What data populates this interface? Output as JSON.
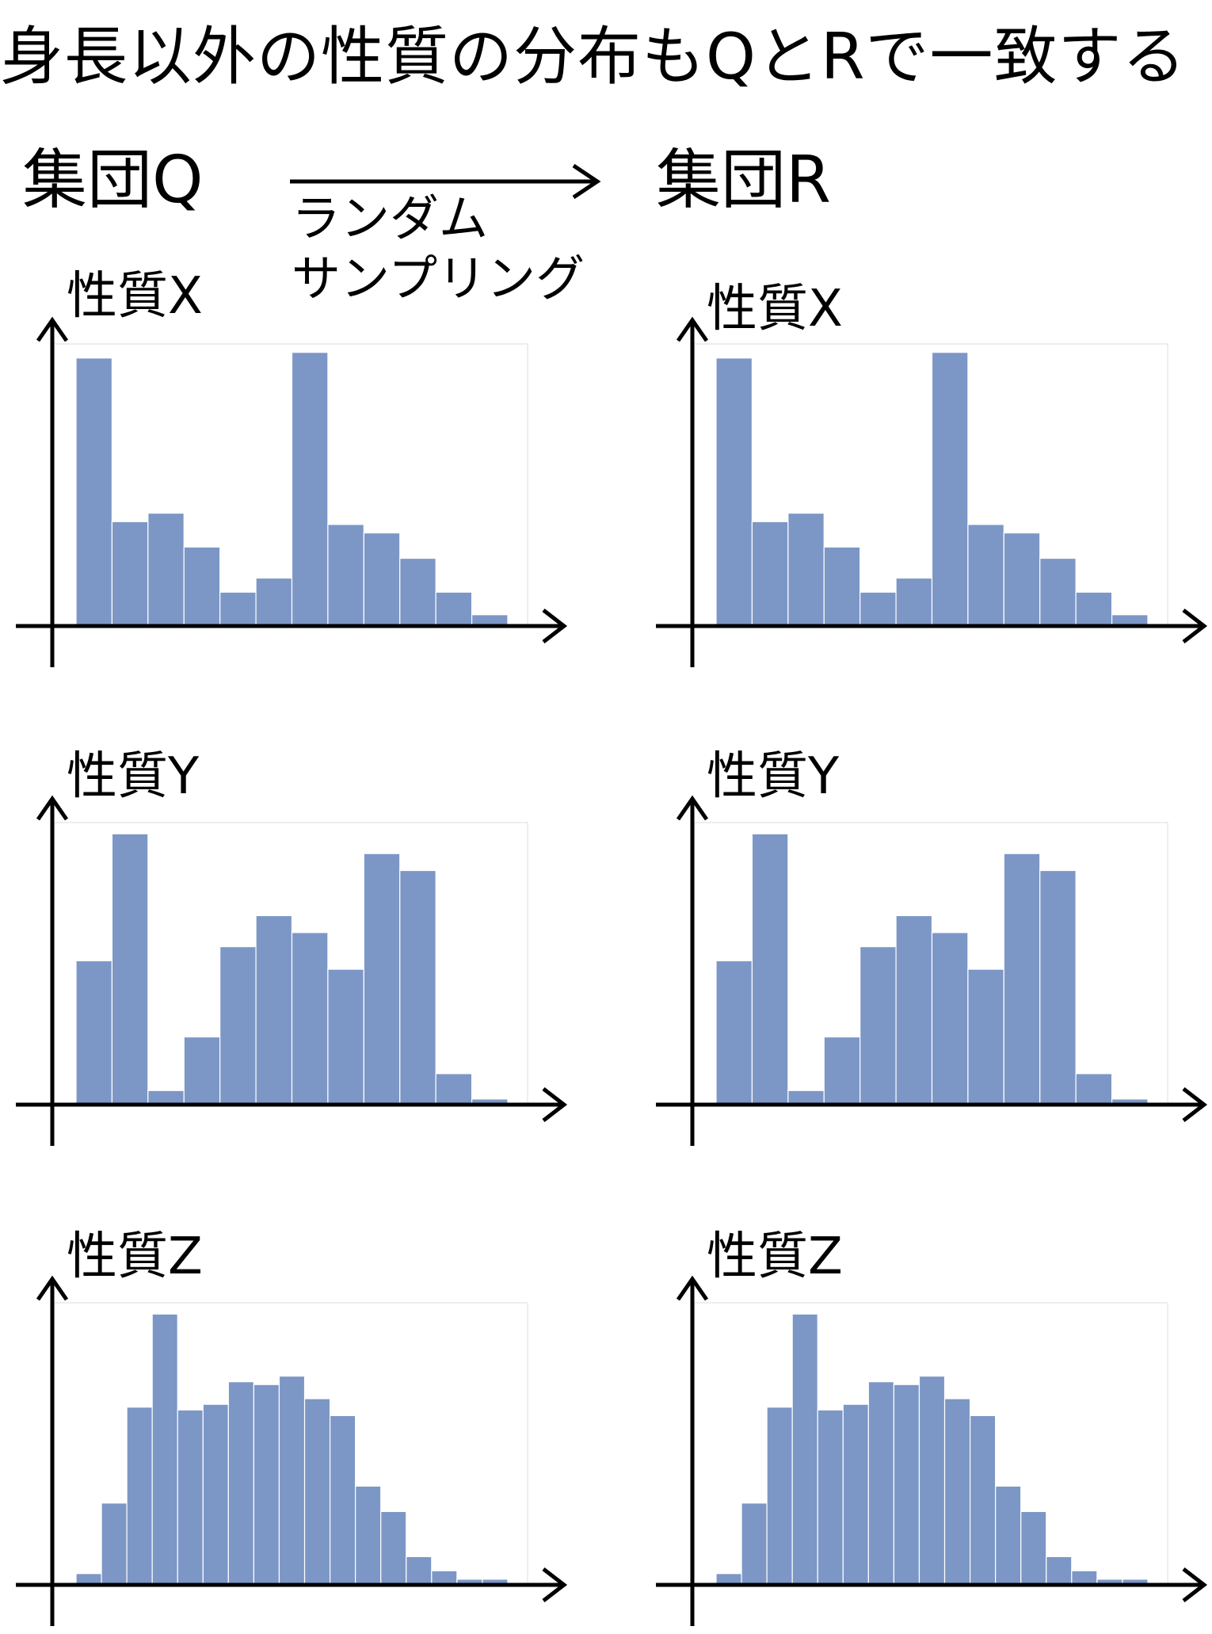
{
  "header": {
    "title": "身長以外の性質の分布もQとRで一致する"
  },
  "groups": {
    "left": "集団Q",
    "right": "集団R"
  },
  "sampling": {
    "line1": "ランダム",
    "line2": "サンプリング"
  },
  "colors": {
    "bar": "#7c97c6",
    "axis": "#000000",
    "frame": "#e8e8e8"
  },
  "chart_data": [
    {
      "type": "bar",
      "group": "集団Q",
      "title": "性質X",
      "ylim": [
        0,
        1.0
      ],
      "values": [
        0.95,
        0.37,
        0.4,
        0.28,
        0.12,
        0.17,
        0.97,
        0.36,
        0.33,
        0.24,
        0.12,
        0.04
      ]
    },
    {
      "type": "bar",
      "group": "集団R",
      "title": "性質X",
      "ylim": [
        0,
        1.0
      ],
      "values": [
        0.95,
        0.37,
        0.4,
        0.28,
        0.12,
        0.17,
        0.97,
        0.36,
        0.33,
        0.24,
        0.12,
        0.04
      ]
    },
    {
      "type": "bar",
      "group": "集団Q",
      "title": "性質Y",
      "ylim": [
        0,
        1.0
      ],
      "values": [
        0.51,
        0.96,
        0.05,
        0.24,
        0.56,
        0.67,
        0.61,
        0.48,
        0.89,
        0.83,
        0.11,
        0.02
      ]
    },
    {
      "type": "bar",
      "group": "集団R",
      "title": "性質Y",
      "ylim": [
        0,
        1.0
      ],
      "values": [
        0.51,
        0.96,
        0.05,
        0.24,
        0.56,
        0.67,
        0.61,
        0.48,
        0.89,
        0.83,
        0.11,
        0.02
      ]
    },
    {
      "type": "bar",
      "group": "集団Q",
      "title": "性質Z",
      "ylim": [
        0,
        1.0
      ],
      "values": [
        0.04,
        0.29,
        0.63,
        0.96,
        0.62,
        0.64,
        0.72,
        0.71,
        0.74,
        0.66,
        0.6,
        0.35,
        0.26,
        0.1,
        0.05,
        0.02,
        0.02
      ]
    },
    {
      "type": "bar",
      "group": "集団R",
      "title": "性質Z",
      "ylim": [
        0,
        1.0
      ],
      "values": [
        0.04,
        0.29,
        0.63,
        0.96,
        0.62,
        0.64,
        0.72,
        0.71,
        0.74,
        0.66,
        0.6,
        0.35,
        0.26,
        0.1,
        0.05,
        0.02,
        0.02
      ]
    }
  ]
}
